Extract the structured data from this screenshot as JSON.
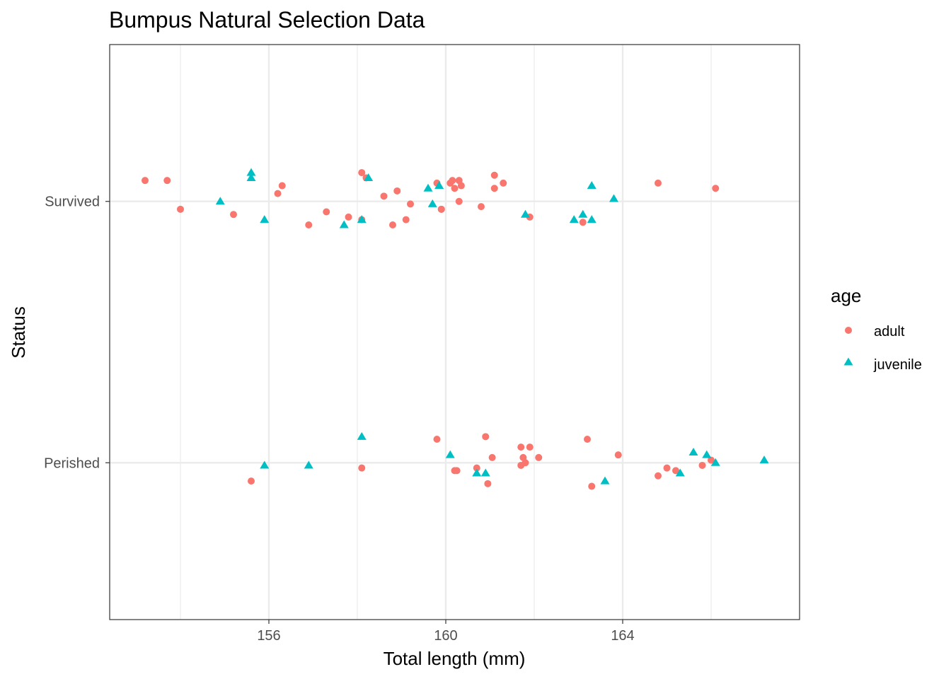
{
  "chart_data": {
    "type": "scatter",
    "title": "Bumpus Natural Selection Data",
    "xlabel": "Total length (mm)",
    "ylabel": "Status",
    "xlim": [
      152.4,
      168.0
    ],
    "x_ticks": [
      156,
      160,
      164
    ],
    "y_categories": [
      "Perished",
      "Survived"
    ],
    "grid": true,
    "legend": {
      "title": "age",
      "position": "right",
      "entries": [
        {
          "name": "adult",
          "color": "#F8766D",
          "shape": "circle"
        },
        {
          "name": "juvenile",
          "color": "#00BFC4",
          "shape": "triangle"
        }
      ]
    },
    "series": [
      {
        "name": "adult",
        "points": [
          {
            "x": 153.2,
            "status": "Survived",
            "jitter": 0.08
          },
          {
            "x": 153.7,
            "status": "Survived",
            "jitter": 0.08
          },
          {
            "x": 154.0,
            "status": "Survived",
            "jitter": -0.03
          },
          {
            "x": 155.2,
            "status": "Survived",
            "jitter": -0.05
          },
          {
            "x": 156.2,
            "status": "Survived",
            "jitter": 0.03
          },
          {
            "x": 156.3,
            "status": "Survived",
            "jitter": 0.06
          },
          {
            "x": 156.9,
            "status": "Survived",
            "jitter": -0.09
          },
          {
            "x": 157.3,
            "status": "Survived",
            "jitter": -0.04
          },
          {
            "x": 157.8,
            "status": "Survived",
            "jitter": -0.06
          },
          {
            "x": 158.1,
            "status": "Survived",
            "jitter": 0.11
          },
          {
            "x": 158.2,
            "status": "Survived",
            "jitter": 0.09
          },
          {
            "x": 158.1,
            "status": "Survived",
            "jitter": -0.07
          },
          {
            "x": 158.6,
            "status": "Survived",
            "jitter": 0.02
          },
          {
            "x": 158.8,
            "status": "Survived",
            "jitter": -0.09
          },
          {
            "x": 158.9,
            "status": "Survived",
            "jitter": 0.04
          },
          {
            "x": 159.1,
            "status": "Survived",
            "jitter": -0.07
          },
          {
            "x": 159.2,
            "status": "Survived",
            "jitter": -0.01
          },
          {
            "x": 159.8,
            "status": "Survived",
            "jitter": 0.07
          },
          {
            "x": 159.9,
            "status": "Survived",
            "jitter": -0.03
          },
          {
            "x": 159.9,
            "status": "Survived",
            "jitter": -0.03
          },
          {
            "x": 160.1,
            "status": "Survived",
            "jitter": 0.07
          },
          {
            "x": 160.15,
            "status": "Survived",
            "jitter": 0.08
          },
          {
            "x": 160.2,
            "status": "Survived",
            "jitter": 0.05
          },
          {
            "x": 160.3,
            "status": "Survived",
            "jitter": 0.08
          },
          {
            "x": 160.3,
            "status": "Survived",
            "jitter": 0.0
          },
          {
            "x": 160.35,
            "status": "Survived",
            "jitter": 0.06
          },
          {
            "x": 160.8,
            "status": "Survived",
            "jitter": -0.02
          },
          {
            "x": 161.1,
            "status": "Survived",
            "jitter": 0.05
          },
          {
            "x": 161.1,
            "status": "Survived",
            "jitter": 0.1
          },
          {
            "x": 161.3,
            "status": "Survived",
            "jitter": 0.07
          },
          {
            "x": 161.9,
            "status": "Survived",
            "jitter": -0.06
          },
          {
            "x": 163.1,
            "status": "Survived",
            "jitter": -0.08
          },
          {
            "x": 164.8,
            "status": "Survived",
            "jitter": 0.07
          },
          {
            "x": 166.1,
            "status": "Survived",
            "jitter": 0.05
          },
          {
            "x": 155.6,
            "status": "Perished",
            "jitter": -0.07
          },
          {
            "x": 158.1,
            "status": "Perished",
            "jitter": -0.02
          },
          {
            "x": 159.8,
            "status": "Perished",
            "jitter": 0.09
          },
          {
            "x": 160.2,
            "status": "Perished",
            "jitter": -0.03
          },
          {
            "x": 160.25,
            "status": "Perished",
            "jitter": -0.03
          },
          {
            "x": 160.7,
            "status": "Perished",
            "jitter": -0.02
          },
          {
            "x": 160.9,
            "status": "Perished",
            "jitter": 0.1
          },
          {
            "x": 160.95,
            "status": "Perished",
            "jitter": -0.08
          },
          {
            "x": 161.05,
            "status": "Perished",
            "jitter": 0.02
          },
          {
            "x": 161.7,
            "status": "Perished",
            "jitter": 0.06
          },
          {
            "x": 161.7,
            "status": "Perished",
            "jitter": -0.01
          },
          {
            "x": 161.75,
            "status": "Perished",
            "jitter": 0.02
          },
          {
            "x": 161.8,
            "status": "Perished",
            "jitter": 0.0
          },
          {
            "x": 161.9,
            "status": "Perished",
            "jitter": 0.06
          },
          {
            "x": 162.1,
            "status": "Perished",
            "jitter": 0.02
          },
          {
            "x": 163.2,
            "status": "Perished",
            "jitter": 0.09
          },
          {
            "x": 163.3,
            "status": "Perished",
            "jitter": -0.09
          },
          {
            "x": 163.9,
            "status": "Perished",
            "jitter": 0.03
          },
          {
            "x": 164.8,
            "status": "Perished",
            "jitter": -0.05
          },
          {
            "x": 165.0,
            "status": "Perished",
            "jitter": -0.02
          },
          {
            "x": 165.2,
            "status": "Perished",
            "jitter": -0.03
          },
          {
            "x": 165.8,
            "status": "Perished",
            "jitter": -0.01
          },
          {
            "x": 166.0,
            "status": "Perished",
            "jitter": 0.01
          }
        ]
      },
      {
        "name": "juvenile",
        "points": [
          {
            "x": 155.6,
            "status": "Survived",
            "jitter": 0.11
          },
          {
            "x": 155.6,
            "status": "Survived",
            "jitter": 0.09
          },
          {
            "x": 154.9,
            "status": "Survived",
            "jitter": 0.0
          },
          {
            "x": 155.9,
            "status": "Survived",
            "jitter": -0.07
          },
          {
            "x": 157.7,
            "status": "Survived",
            "jitter": -0.09
          },
          {
            "x": 158.1,
            "status": "Survived",
            "jitter": -0.07
          },
          {
            "x": 158.25,
            "status": "Survived",
            "jitter": 0.09
          },
          {
            "x": 159.6,
            "status": "Survived",
            "jitter": 0.05
          },
          {
            "x": 159.7,
            "status": "Survived",
            "jitter": -0.01
          },
          {
            "x": 159.85,
            "status": "Survived",
            "jitter": 0.06
          },
          {
            "x": 161.8,
            "status": "Survived",
            "jitter": -0.05
          },
          {
            "x": 162.9,
            "status": "Survived",
            "jitter": -0.07
          },
          {
            "x": 163.1,
            "status": "Survived",
            "jitter": -0.05
          },
          {
            "x": 163.3,
            "status": "Survived",
            "jitter": 0.06
          },
          {
            "x": 163.3,
            "status": "Survived",
            "jitter": -0.07
          },
          {
            "x": 163.8,
            "status": "Survived",
            "jitter": 0.01
          },
          {
            "x": 155.9,
            "status": "Perished",
            "jitter": -0.01
          },
          {
            "x": 156.9,
            "status": "Perished",
            "jitter": -0.01
          },
          {
            "x": 158.1,
            "status": "Perished",
            "jitter": 0.1
          },
          {
            "x": 160.1,
            "status": "Perished",
            "jitter": 0.03
          },
          {
            "x": 160.7,
            "status": "Perished",
            "jitter": -0.04
          },
          {
            "x": 160.9,
            "status": "Perished",
            "jitter": -0.04
          },
          {
            "x": 163.6,
            "status": "Perished",
            "jitter": -0.07
          },
          {
            "x": 165.3,
            "status": "Perished",
            "jitter": -0.04
          },
          {
            "x": 165.6,
            "status": "Perished",
            "jitter": 0.04
          },
          {
            "x": 165.9,
            "status": "Perished",
            "jitter": 0.03
          },
          {
            "x": 166.1,
            "status": "Perished",
            "jitter": 0.0
          },
          {
            "x": 167.2,
            "status": "Perished",
            "jitter": 0.01
          }
        ]
      }
    ]
  }
}
